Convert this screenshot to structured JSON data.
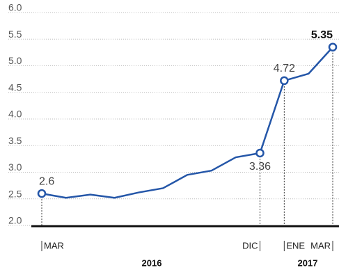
{
  "chart_data": {
    "type": "line",
    "categories": [
      "MAR",
      null,
      null,
      null,
      null,
      null,
      null,
      null,
      null,
      "DIC",
      "ENE",
      null,
      "MAR"
    ],
    "series": [
      {
        "color": "#2456a8",
        "values": [
          2.6,
          2.52,
          2.58,
          2.52,
          2.62,
          2.7,
          2.95,
          3.03,
          3.28,
          3.36,
          4.72,
          4.85,
          5.35
        ],
        "value_labels": [
          "2.6",
          null,
          null,
          null,
          null,
          null,
          null,
          null,
          null,
          "3.36",
          "4.72",
          null,
          "5.35"
        ]
      }
    ],
    "annotations": [
      "2016",
      "2017"
    ],
    "ylim": [
      2,
      6
    ],
    "yticks": [
      {
        "value": 2,
        "label": "2.0"
      },
      2.5,
      {
        "value": 3,
        "label": "3.0"
      },
      3.5,
      {
        "value": 4,
        "label": "4.0"
      },
      4.5,
      {
        "value": 5,
        "label": "5.0"
      },
      5.5,
      {
        "value": 6,
        "label": "6.0"
      }
    ],
    "grid": true
  }
}
